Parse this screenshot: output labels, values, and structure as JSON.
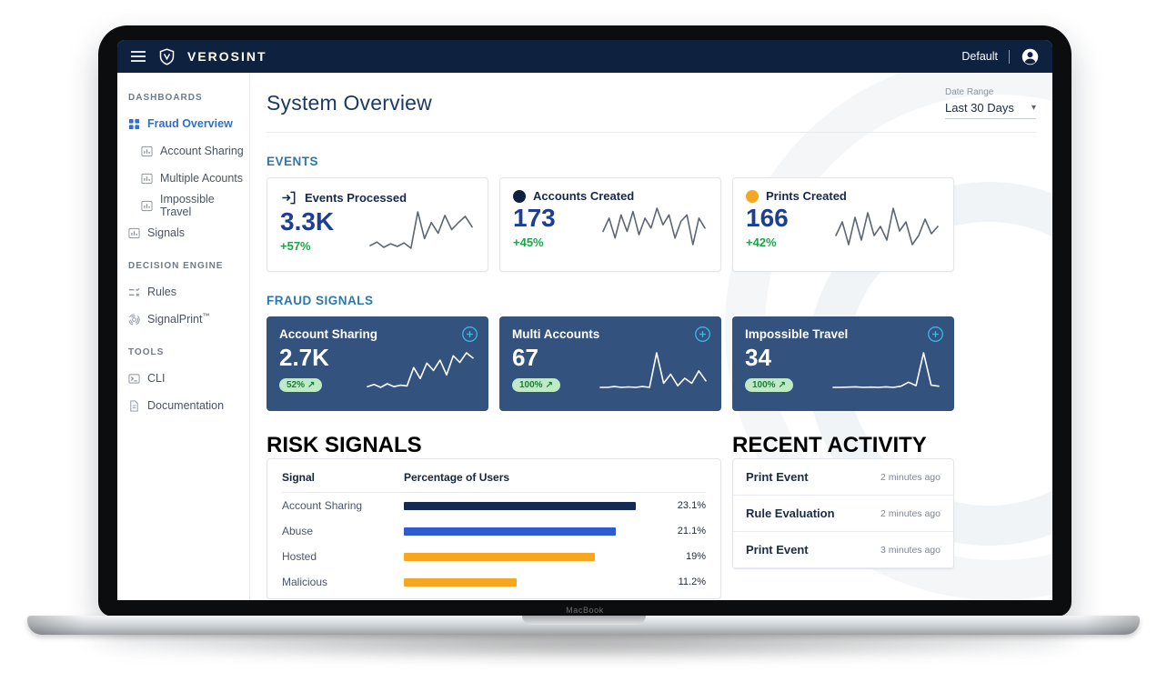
{
  "laptop": {
    "brand_label": "MacBook"
  },
  "topbar": {
    "brand": "VEROSINT",
    "workspace": "Default"
  },
  "icons": {
    "caret_down": "▾",
    "trend_up": "↗"
  },
  "sidebar": {
    "sections": [
      {
        "label": "DASHBOARDS",
        "items": [
          {
            "label": "Fraud Overview",
            "icon": "grid-icon",
            "active": true
          },
          {
            "label": "Account Sharing",
            "icon": "bar-chart-icon"
          },
          {
            "label": "Multiple Acounts",
            "icon": "bar-chart-icon"
          },
          {
            "label": "Impossible Travel",
            "icon": "bar-chart-icon"
          },
          {
            "label": "Signals",
            "icon": "bar-chart-icon"
          }
        ]
      },
      {
        "label": "DECISION ENGINE",
        "items": [
          {
            "label": "Rules",
            "icon": "rules-icon"
          },
          {
            "label": "SignalPrint",
            "suffix": "™",
            "icon": "fingerprint-icon"
          }
        ]
      },
      {
        "label": "TOOLS",
        "items": [
          {
            "label": "CLI",
            "icon": "terminal-icon"
          },
          {
            "label": "Documentation",
            "icon": "document-icon"
          }
        ]
      }
    ]
  },
  "header": {
    "title": "System Overview",
    "date_range_label": "Date Range",
    "date_range_value": "Last 30 Days"
  },
  "events": {
    "section_title": "EVENTS",
    "cards": [
      {
        "title": "Events Processed",
        "value": "3.3K",
        "delta": "+57%",
        "icon": "sign-in-icon",
        "spark": [
          3,
          3.4,
          2.8,
          3.2,
          2.9,
          3.3,
          2.7,
          6.8,
          3.8,
          5.6,
          4.4,
          6.4,
          4.8,
          5.6,
          6.3,
          5.1
        ]
      },
      {
        "title": "Accounts Created",
        "value": "173",
        "delta": "+45%",
        "icon": "navy-dot-icon",
        "spark": [
          4,
          6,
          3,
          6.5,
          4,
          7,
          3.5,
          6,
          4.5,
          7.5,
          5,
          6.5,
          3,
          5.5,
          6.5,
          2,
          6,
          4.5
        ]
      },
      {
        "title": "Prints Created",
        "value": "166",
        "delta": "+42%",
        "icon": "orange-dot-icon",
        "spark": [
          5,
          6.5,
          4,
          7,
          4.5,
          7.5,
          5,
          6,
          4.5,
          8,
          5.5,
          6.5,
          4,
          5,
          6.8,
          5.2,
          6
        ]
      }
    ]
  },
  "fraud_signals": {
    "section_title": "FRAUD SIGNALS",
    "cards": [
      {
        "title": "Account Sharing",
        "value": "2.7K",
        "badge": "52%",
        "spark": [
          2,
          2.3,
          1.9,
          2.4,
          2,
          2.2,
          2.1,
          4.6,
          3.1,
          5.2,
          4.2,
          5.6,
          3.6,
          6.2,
          5.3,
          6.6,
          5.9
        ]
      },
      {
        "title": "Multi Accounts",
        "value": "67",
        "badge": "100%",
        "spark": [
          1,
          1,
          1.1,
          1,
          1.05,
          1,
          1.1,
          1,
          5.2,
          1.5,
          2.6,
          1.2,
          2.1,
          1.5,
          3,
          1.8
        ]
      },
      {
        "title": "Impossible Travel",
        "value": "34",
        "badge": "100%",
        "spark": [
          1,
          1,
          1.05,
          1.1,
          1,
          1.05,
          1,
          1.1,
          1,
          1.2,
          1.9,
          1.3,
          7,
          1.4,
          1.2
        ]
      }
    ]
  },
  "risk_signals": {
    "section_title": "RISK SIGNALS",
    "columns": [
      "Signal",
      "Percentage of Users"
    ],
    "scale_max": 25,
    "rows": [
      {
        "signal": "Account Sharing",
        "pct": 23.1,
        "pct_label": "23.1%",
        "color": "#152a52"
      },
      {
        "signal": "Abuse",
        "pct": 21.1,
        "pct_label": "21.1%",
        "color": "#2d5bd0"
      },
      {
        "signal": "Hosted",
        "pct": 19,
        "pct_label": "19%",
        "color": "#f5a81f"
      },
      {
        "signal": "Malicious",
        "pct": 11.2,
        "pct_label": "11.2%",
        "color": "#f5a81f"
      }
    ]
  },
  "recent_activity": {
    "section_title": "RECENT ACTIVITY",
    "items": [
      {
        "label": "Print Event",
        "time": "2 minutes ago"
      },
      {
        "label": "Rule Evaluation",
        "time": "2 minutes ago"
      },
      {
        "label": "Print Event",
        "time": "3 minutes ago"
      }
    ]
  },
  "colors": {
    "topbar_bg": "#0e2240",
    "accent_blue": "#2f6fd0",
    "header_blue": "#2a78ad",
    "value_blue": "#1d3e93",
    "positive_green": "#1ba447",
    "dark_card_bg": "#33527d",
    "cyan_accent": "#3ab7e5",
    "orange": "#f5a81f"
  }
}
